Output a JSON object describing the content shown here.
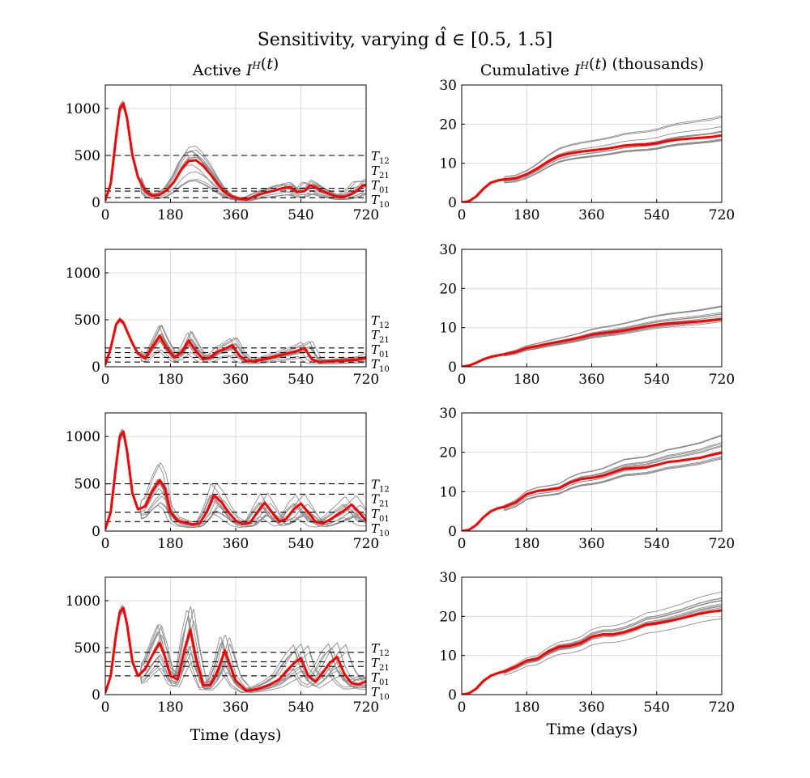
{
  "figure": {
    "title": "Sensitivity, varying d̂ ∈ [0.5, 1.5]",
    "col_titles": [
      "Active I^H(t)",
      "Cumulative I^H(t) (thousands)"
    ],
    "xlabel": "Time (days)",
    "threshold_labels": [
      "T12",
      "T21",
      "T01",
      "T10"
    ]
  },
  "chart_data": [
    {
      "type": "line",
      "panel": "row1-active",
      "title": "Active I^H(t)",
      "xlim": [
        0,
        720
      ],
      "ylim": [
        0,
        1250
      ],
      "xticks": [
        0,
        180,
        360,
        540,
        720
      ],
      "yticks": [
        0,
        500,
        1000
      ],
      "grid": true,
      "thresholds": [
        {
          "name": "T12",
          "value": 500
        },
        {
          "name": "T21",
          "value": 150
        },
        {
          "name": "T01",
          "value": 120
        },
        {
          "name": "T10",
          "value": 50
        }
      ],
      "highlight": {
        "x": [
          0,
          15,
          30,
          40,
          50,
          60,
          75,
          90,
          110,
          130,
          150,
          170,
          190,
          210,
          230,
          250,
          270,
          290,
          310,
          330,
          350,
          370,
          390,
          410,
          430,
          450,
          470,
          490,
          510,
          530,
          550,
          565,
          580,
          600,
          620,
          640,
          660,
          680,
          700,
          710,
          720
        ],
        "y": [
          20,
          200,
          700,
          1000,
          1050,
          900,
          500,
          270,
          120,
          70,
          80,
          130,
          220,
          350,
          440,
          450,
          390,
          300,
          200,
          110,
          60,
          40,
          30,
          60,
          90,
          110,
          130,
          150,
          160,
          110,
          120,
          180,
          160,
          120,
          90,
          60,
          60,
          90,
          140,
          180,
          185
        ]
      }
    },
    {
      "type": "line",
      "panel": "row1-cumulative",
      "title": "Cumulative I^H(t) (thousands)",
      "xlim": [
        0,
        720
      ],
      "ylim": [
        0,
        30
      ],
      "xticks": [
        0,
        180,
        360,
        540,
        720
      ],
      "yticks": [
        0,
        10,
        20,
        30
      ],
      "grid": true,
      "highlight": {
        "x": [
          0,
          20,
          40,
          60,
          80,
          100,
          120,
          150,
          180,
          210,
          240,
          270,
          300,
          330,
          360,
          390,
          420,
          450,
          480,
          510,
          540,
          570,
          600,
          630,
          660,
          690,
          720
        ],
        "y": [
          0,
          0.3,
          1.5,
          3.5,
          5,
          5.6,
          5.9,
          6.2,
          7.2,
          8.7,
          10.5,
          11.9,
          12.6,
          13.0,
          13.3,
          13.6,
          14.0,
          14.5,
          14.7,
          14.8,
          15.1,
          15.7,
          16.1,
          16.3,
          16.5,
          16.7,
          17.1
        ]
      }
    },
    {
      "type": "line",
      "panel": "row2-active",
      "xlim": [
        0,
        720
      ],
      "ylim": [
        0,
        1250
      ],
      "xticks": [
        0,
        180,
        360,
        540,
        720
      ],
      "yticks": [
        0,
        500,
        1000
      ],
      "grid": true,
      "thresholds": [
        {
          "name": "T12",
          "value": 200
        },
        {
          "name": "T21",
          "value": 150
        },
        {
          "name": "T01",
          "value": 100
        },
        {
          "name": "T10",
          "value": 50
        }
      ],
      "highlight": {
        "x": [
          0,
          15,
          30,
          40,
          50,
          60,
          75,
          90,
          110,
          130,
          150,
          170,
          190,
          210,
          230,
          250,
          270,
          290,
          310,
          330,
          350,
          370,
          390,
          410,
          430,
          450,
          470,
          490,
          510,
          530,
          550,
          570,
          590,
          610,
          630,
          650,
          670,
          690,
          710,
          720
        ],
        "y": [
          20,
          200,
          450,
          500,
          470,
          380,
          250,
          140,
          90,
          210,
          330,
          200,
          100,
          150,
          280,
          170,
          80,
          100,
          160,
          190,
          230,
          120,
          60,
          60,
          75,
          90,
          110,
          130,
          150,
          170,
          200,
          80,
          50,
          55,
          60,
          65,
          70,
          75,
          85,
          100
        ]
      }
    },
    {
      "type": "line",
      "panel": "row2-cumulative",
      "xlim": [
        0,
        720
      ],
      "ylim": [
        0,
        30
      ],
      "xticks": [
        0,
        180,
        360,
        540,
        720
      ],
      "yticks": [
        0,
        10,
        20,
        30
      ],
      "grid": true,
      "highlight": {
        "x": [
          0,
          20,
          40,
          60,
          80,
          100,
          120,
          150,
          180,
          210,
          240,
          270,
          300,
          330,
          360,
          390,
          420,
          450,
          480,
          510,
          540,
          570,
          600,
          630,
          660,
          690,
          720
        ],
        "y": [
          0,
          0.3,
          1.0,
          1.9,
          2.5,
          2.9,
          3.2,
          3.8,
          4.8,
          5.3,
          5.9,
          6.4,
          6.9,
          7.5,
          8.2,
          8.6,
          8.9,
          9.3,
          9.8,
          10.3,
          10.7,
          11.0,
          11.2,
          11.4,
          11.6,
          11.9,
          12.2
        ]
      }
    },
    {
      "type": "line",
      "panel": "row3-active",
      "xlim": [
        0,
        720
      ],
      "ylim": [
        0,
        1250
      ],
      "xticks": [
        0,
        180,
        360,
        540,
        720
      ],
      "yticks": [
        0,
        500,
        1000
      ],
      "grid": true,
      "thresholds": [
        {
          "name": "T12",
          "value": 500
        },
        {
          "name": "T21",
          "value": 390
        },
        {
          "name": "T01",
          "value": 200
        },
        {
          "name": "T10",
          "value": 100
        }
      ],
      "highlight": {
        "x": [
          0,
          15,
          30,
          40,
          50,
          60,
          75,
          90,
          110,
          130,
          150,
          165,
          180,
          200,
          220,
          240,
          260,
          280,
          300,
          320,
          340,
          360,
          380,
          400,
          420,
          440,
          460,
          480,
          500,
          520,
          540,
          560,
          580,
          600,
          620,
          640,
          660,
          680,
          700,
          720
        ],
        "y": [
          20,
          200,
          700,
          1000,
          1050,
          850,
          400,
          230,
          260,
          420,
          540,
          450,
          200,
          110,
          90,
          70,
          80,
          200,
          380,
          310,
          200,
          110,
          75,
          90,
          200,
          300,
          200,
          100,
          130,
          230,
          290,
          200,
          100,
          80,
          120,
          170,
          220,
          280,
          200,
          110
        ]
      }
    },
    {
      "type": "line",
      "panel": "row3-cumulative",
      "xlim": [
        0,
        720
      ],
      "ylim": [
        0,
        30
      ],
      "xticks": [
        0,
        180,
        360,
        540,
        720
      ],
      "yticks": [
        0,
        10,
        20,
        30
      ],
      "grid": true,
      "highlight": {
        "x": [
          0,
          20,
          40,
          60,
          80,
          100,
          120,
          150,
          180,
          210,
          240,
          270,
          300,
          330,
          360,
          390,
          420,
          450,
          480,
          510,
          540,
          570,
          600,
          630,
          660,
          690,
          720
        ],
        "y": [
          0,
          0.3,
          1.5,
          3.5,
          5,
          5.8,
          6.2,
          7.3,
          9.4,
          10.2,
          10.5,
          10.9,
          12.3,
          13.2,
          13.5,
          14.0,
          14.9,
          15.8,
          16.0,
          16.2,
          16.8,
          17.5,
          17.8,
          18.2,
          18.6,
          19.3,
          19.9
        ]
      }
    },
    {
      "type": "line",
      "panel": "row4-active",
      "xlim": [
        0,
        720
      ],
      "ylim": [
        0,
        1250
      ],
      "xticks": [
        0,
        180,
        360,
        540,
        720
      ],
      "yticks": [
        0,
        500,
        1000
      ],
      "grid": true,
      "thresholds": [
        {
          "name": "T12",
          "value": 450
        },
        {
          "name": "T21",
          "value": 350
        },
        {
          "name": "T01",
          "value": 300
        },
        {
          "name": "T10",
          "value": 200
        }
      ],
      "highlight": {
        "x": [
          0,
          15,
          30,
          40,
          50,
          60,
          75,
          90,
          110,
          130,
          150,
          165,
          180,
          200,
          220,
          235,
          250,
          270,
          290,
          310,
          330,
          360,
          390,
          420,
          450,
          480,
          500,
          520,
          540,
          560,
          580,
          600,
          620,
          640,
          660,
          680,
          700,
          720
        ],
        "y": [
          20,
          200,
          650,
          880,
          920,
          750,
          350,
          200,
          270,
          420,
          550,
          400,
          200,
          160,
          500,
          690,
          400,
          100,
          100,
          250,
          470,
          150,
          40,
          60,
          100,
          160,
          250,
          330,
          390,
          200,
          140,
          230,
          340,
          400,
          220,
          120,
          110,
          140
        ]
      }
    },
    {
      "type": "line",
      "panel": "row4-cumulative",
      "xlim": [
        0,
        720
      ],
      "ylim": [
        0,
        30
      ],
      "xticks": [
        0,
        180,
        360,
        540,
        720
      ],
      "yticks": [
        0,
        10,
        20,
        30
      ],
      "grid": true,
      "highlight": {
        "x": [
          0,
          20,
          40,
          60,
          80,
          100,
          120,
          150,
          180,
          210,
          240,
          270,
          300,
          330,
          360,
          390,
          420,
          450,
          480,
          510,
          540,
          570,
          600,
          630,
          660,
          690,
          720
        ],
        "y": [
          0,
          0.3,
          1.5,
          3.5,
          4.8,
          5.5,
          6.0,
          7.2,
          8.7,
          9.2,
          11.0,
          12.2,
          12.5,
          13.2,
          14.8,
          15.4,
          15.4,
          15.9,
          16.8,
          17.9,
          18.2,
          18.7,
          19.3,
          20.0,
          20.7,
          21.2,
          21.5
        ]
      }
    }
  ],
  "colors": {
    "highlight": "#ff0000",
    "ensemble": "#8c8c8c",
    "grid": "#dcdcdc",
    "threshold": "#000000"
  }
}
